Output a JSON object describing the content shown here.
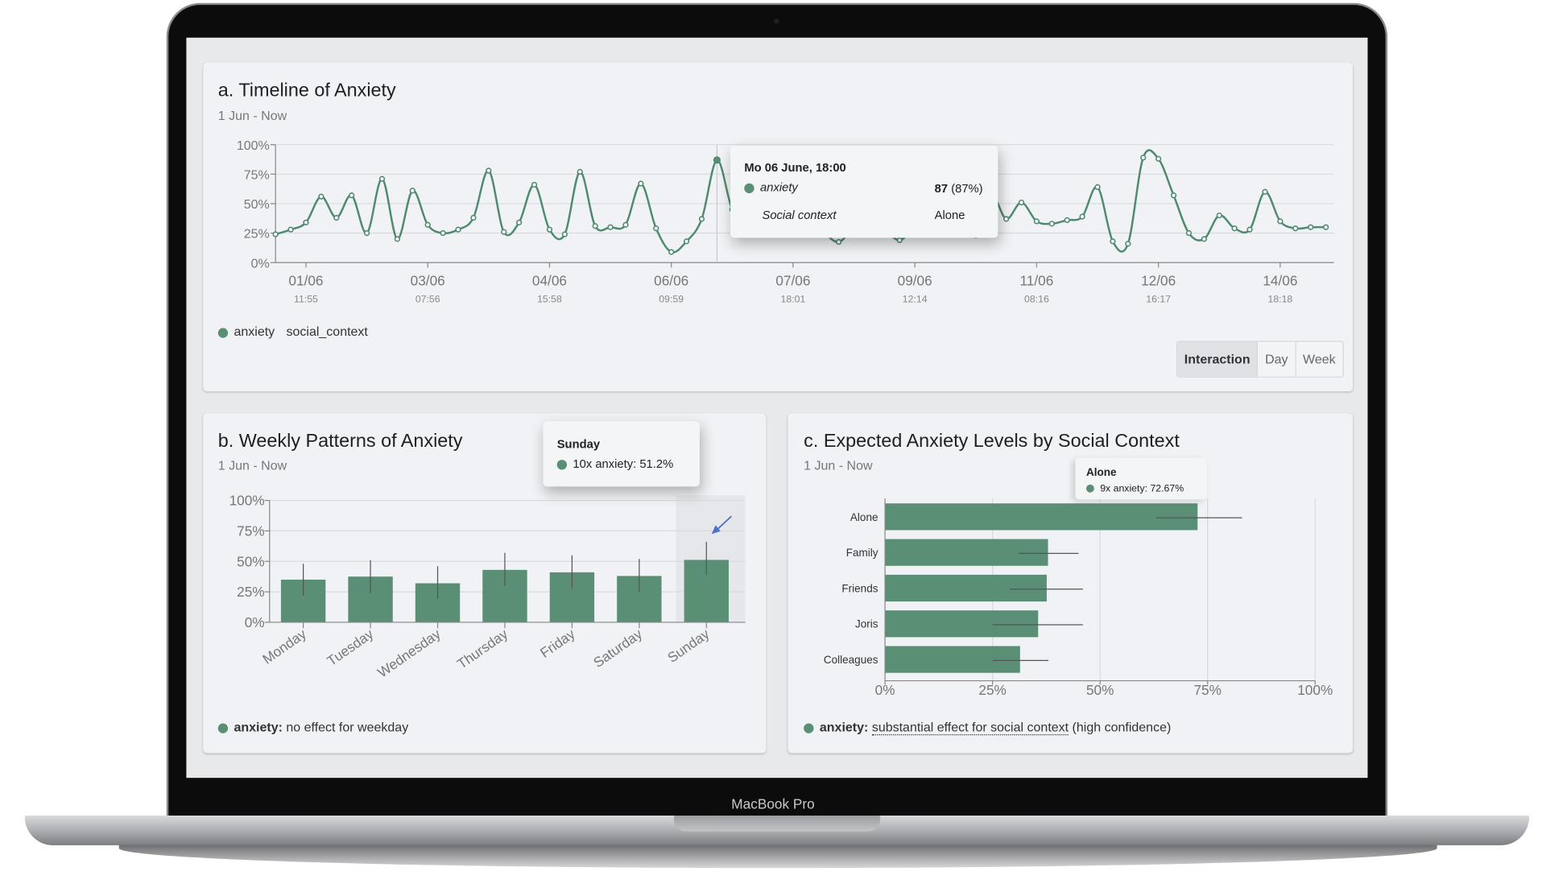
{
  "device_label": "MacBook Pro",
  "colors": {
    "accent": "#5a8f76",
    "arrow": "#4a72c8"
  },
  "timeline": {
    "title": "a. Timeline of Anxiety",
    "subtitle": "1 Jun - Now",
    "legend": {
      "series1": "anxiety",
      "series2": "social_context"
    },
    "tooltip": {
      "datetime": "Mo 06 June, 18:00",
      "series": "anxiety",
      "value": "87",
      "percent": "(87%)",
      "context_label": "Social context",
      "context_value": "Alone"
    },
    "buttons": [
      {
        "label": "Interaction",
        "active": true
      },
      {
        "label": "Day",
        "active": false
      },
      {
        "label": "Week",
        "active": false
      }
    ]
  },
  "weekly": {
    "title": "b. Weekly Patterns of Anxiety",
    "subtitle": "1 Jun - Now",
    "tooltip": {
      "title": "Sunday",
      "text": "10x anxiety: 51.2%"
    },
    "legend": {
      "series": "anxiety:",
      "text": " no effect for weekday"
    }
  },
  "social": {
    "title": "c. Expected Anxiety Levels by Social Context",
    "subtitle": "1 Jun - Now",
    "tooltip": {
      "title": "Alone",
      "text": "9x anxiety: 72.67%"
    },
    "legend": {
      "series": "anxiety:",
      "link": "substantial effect for social context",
      "text": " (high confidence)"
    }
  },
  "chart_data": [
    {
      "type": "line",
      "title": "a. Timeline of Anxiety",
      "ylim": [
        0,
        100
      ],
      "yticks": [
        "0%",
        "25%",
        "50%",
        "75%",
        "100%"
      ],
      "x_ticks": [
        {
          "index": 2,
          "date": "01/06",
          "time": "11:55"
        },
        {
          "index": 10,
          "date": "03/06",
          "time": "07:56"
        },
        {
          "index": 18,
          "date": "04/06",
          "time": "15:58"
        },
        {
          "index": 26,
          "date": "06/06",
          "time": "09:59"
        },
        {
          "index": 34,
          "date": "07/06",
          "time": "18:01"
        },
        {
          "index": 42,
          "date": "09/06",
          "time": "12:14"
        },
        {
          "index": 50,
          "date": "11/06",
          "time": "08:16"
        },
        {
          "index": 58,
          "date": "12/06",
          "time": "16:17"
        },
        {
          "index": 66,
          "date": "14/06",
          "time": "18:18"
        }
      ],
      "highlight_index": 29,
      "values": [
        24,
        28,
        34,
        56,
        38,
        57,
        25,
        71,
        20,
        61,
        32,
        25,
        28,
        38,
        78,
        26,
        34,
        66,
        28,
        24,
        77,
        31,
        30,
        32,
        67,
        29,
        9,
        18,
        37,
        87,
        45,
        30,
        28,
        32,
        35,
        30,
        25,
        17.5,
        30,
        35,
        28,
        19,
        30,
        35,
        40,
        32,
        23,
        58,
        37,
        51,
        35,
        33,
        36,
        39,
        64,
        18,
        16,
        89,
        88,
        57,
        25,
        20,
        40,
        29,
        28,
        60,
        35,
        29,
        30,
        30
      ]
    },
    {
      "type": "bar",
      "title": "b. Weekly Patterns of Anxiety",
      "ylim": [
        0,
        100
      ],
      "yticks": [
        "0%",
        "25%",
        "50%",
        "75%",
        "100%"
      ],
      "categories": [
        "Monday",
        "Tuesday",
        "Wednesday",
        "Thursday",
        "Friday",
        "Saturday",
        "Sunday"
      ],
      "values": [
        35,
        37.5,
        32,
        43,
        41,
        38,
        51.2
      ],
      "error_low": [
        22,
        24,
        19,
        30,
        28,
        25,
        39
      ],
      "error_high": [
        48,
        51,
        46,
        57,
        55,
        52,
        66
      ],
      "highlight": "Sunday"
    },
    {
      "type": "bar",
      "orientation": "horizontal",
      "title": "c. Expected Anxiety Levels by Social Context",
      "xlim": [
        0,
        100
      ],
      "xticks": [
        "0%",
        "25%",
        "50%",
        "75%",
        "100%"
      ],
      "categories": [
        "Alone",
        "Family",
        "Friends",
        "Joris",
        "Colleagues"
      ],
      "values": [
        72.67,
        37.9,
        37.6,
        35.6,
        31.4
      ],
      "error_low": [
        63,
        31,
        29,
        25,
        25
      ],
      "error_high": [
        83,
        45,
        46,
        46,
        38
      ]
    }
  ]
}
